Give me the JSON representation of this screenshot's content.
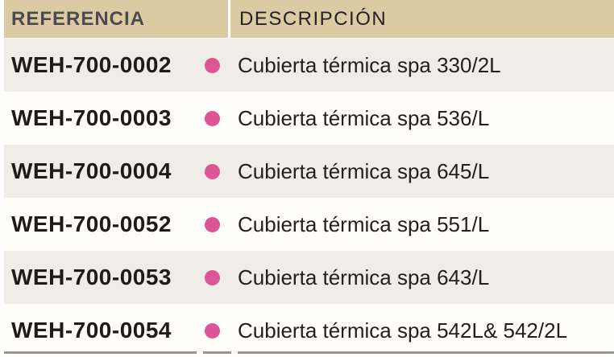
{
  "header": {
    "referencia": "REFERENCIA",
    "descripcion": "DESCRIPCIÓN"
  },
  "rows": [
    {
      "ref": "WEH-700-0002",
      "desc": "Cubierta térmica spa 330/2L"
    },
    {
      "ref": "WEH-700-0003",
      "desc": "Cubierta térmica spa 536/L"
    },
    {
      "ref": "WEH-700-0004",
      "desc": "Cubierta térmica spa 645/L"
    },
    {
      "ref": "WEH-700-0052",
      "desc": "Cubierta térmica spa 551/L"
    },
    {
      "ref": "WEH-700-0053",
      "desc": "Cubierta térmica spa 643/L"
    },
    {
      "ref": "WEH-700-0054",
      "desc": "Cubierta térmica spa 542L& 542/2L"
    }
  ],
  "colors": {
    "header-bg": "#dccaa3",
    "row-bg": "#fffefb",
    "row-alt-bg": "#f0ede8",
    "dot": "#dc5596",
    "header-ref-text": "#4b4a4e",
    "header-desc-text": "#232124",
    "ref-text": "#1d1c1a",
    "desc-text": "#21201e",
    "bottom-line": "#969696"
  }
}
